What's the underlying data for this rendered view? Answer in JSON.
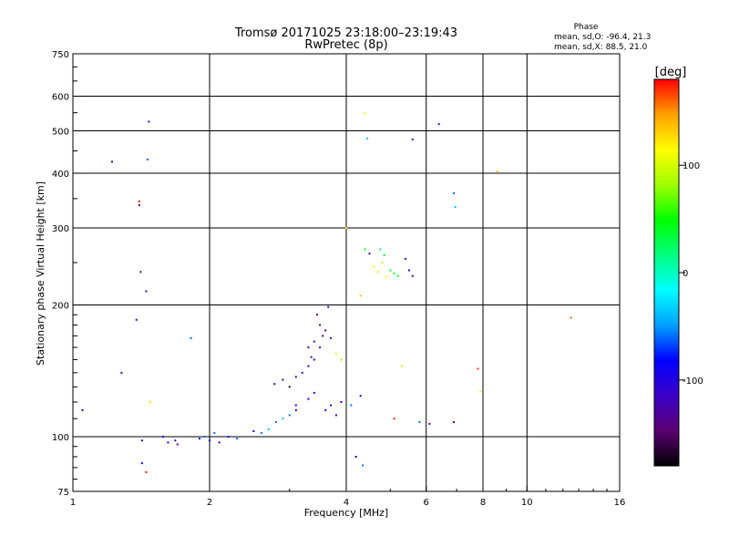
{
  "chart_data": {
    "type": "scatter",
    "title": "Tromsø 20171025 23:18:00–23:19:43",
    "subtitle": "RwPretec (8p)",
    "xlabel": "Frequency [MHz]",
    "ylabel": "Stationary phase Virtual Height [km]",
    "x_scale": "log",
    "y_scale": "log",
    "xlim": [
      1,
      16
    ],
    "ylim": [
      75,
      750
    ],
    "x_ticks": [
      1,
      2,
      4,
      6,
      8,
      10,
      16
    ],
    "y_ticks": [
      75,
      100,
      200,
      300,
      400,
      500,
      600,
      750
    ],
    "grid": true,
    "phase_legend": {
      "title": "Phase",
      "line1": "mean, sd,O: -96.4, 21.3",
      "line2": "mean, sd,X:  88.5, 21.0"
    },
    "colorbar": {
      "label": "[deg]",
      "range": [
        -180,
        180
      ],
      "ticks": [
        100,
        0,
        -100
      ],
      "colors": [
        "#000000",
        "#5a0070",
        "#3c00c8",
        "#0000ff",
        "#00a0ff",
        "#00ffff",
        "#00ff80",
        "#00ff00",
        "#a0ff00",
        "#ffff00",
        "#ffa000",
        "#ff0000"
      ]
    },
    "points": [
      [
        1.05,
        115,
        -120
      ],
      [
        1.22,
        425,
        -120
      ],
      [
        1.28,
        140,
        -120
      ],
      [
        1.38,
        185,
        -120
      ],
      [
        1.4,
        338,
        -130
      ],
      [
        1.4,
        345,
        175
      ],
      [
        1.41,
        238,
        -120
      ],
      [
        1.42,
        98,
        -100
      ],
      [
        1.42,
        87,
        -80
      ],
      [
        1.45,
        215,
        -120
      ],
      [
        1.45,
        83,
        175
      ],
      [
        1.46,
        430,
        -60
      ],
      [
        1.47,
        525,
        -120
      ],
      [
        1.48,
        120,
        120
      ],
      [
        1.58,
        100,
        -100
      ],
      [
        1.62,
        97,
        -100
      ],
      [
        1.68,
        98,
        -120
      ],
      [
        1.7,
        96,
        -120
      ],
      [
        1.82,
        168,
        -60
      ],
      [
        1.9,
        99,
        -100
      ],
      [
        1.95,
        100,
        -60
      ],
      [
        2.0,
        98,
        -80
      ],
      [
        2.05,
        102,
        -60
      ],
      [
        2.1,
        97,
        -100
      ],
      [
        2.2,
        100,
        -80
      ],
      [
        2.3,
        99,
        -60
      ],
      [
        2.5,
        103,
        -100
      ],
      [
        2.6,
        102,
        -60
      ],
      [
        2.7,
        104,
        -40
      ],
      [
        2.8,
        108,
        -60
      ],
      [
        2.9,
        110,
        -40
      ],
      [
        3.0,
        112,
        -60
      ],
      [
        3.1,
        115,
        -80
      ],
      [
        2.78,
        132,
        -120
      ],
      [
        2.9,
        135,
        -130
      ],
      [
        3.0,
        130,
        -160
      ],
      [
        3.1,
        137,
        -120
      ],
      [
        3.2,
        140,
        -110
      ],
      [
        3.3,
        145,
        -100
      ],
      [
        3.4,
        150,
        -120
      ],
      [
        3.5,
        160,
        -110
      ],
      [
        3.1,
        118,
        -100
      ],
      [
        3.3,
        122,
        -110
      ],
      [
        3.4,
        126,
        -100
      ],
      [
        3.6,
        115,
        -100
      ],
      [
        3.7,
        118,
        -110
      ],
      [
        3.8,
        112,
        -120
      ],
      [
        3.9,
        120,
        -100
      ],
      [
        3.55,
        170,
        -130
      ],
      [
        3.5,
        180,
        -120
      ],
      [
        3.45,
        190,
        -130
      ],
      [
        3.6,
        175,
        -110
      ],
      [
        3.7,
        168,
        -120
      ],
      [
        3.3,
        160,
        -120
      ],
      [
        3.35,
        152,
        -130
      ],
      [
        3.65,
        198,
        -140
      ],
      [
        3.4,
        165,
        -110
      ],
      [
        3.8,
        155,
        120
      ],
      [
        3.9,
        150,
        80
      ],
      [
        4.1,
        118,
        -60
      ],
      [
        4.3,
        124,
        -80
      ],
      [
        4.35,
        86,
        -60
      ],
      [
        4.2,
        90,
        -100
      ],
      [
        4.0,
        300,
        120
      ],
      [
        4.6,
        245,
        110
      ],
      [
        4.7,
        238,
        100
      ],
      [
        4.8,
        250,
        90
      ],
      [
        4.9,
        232,
        120
      ],
      [
        5.0,
        240,
        40
      ],
      [
        5.1,
        236,
        60
      ],
      [
        5.2,
        233,
        30
      ],
      [
        4.75,
        268,
        20
      ],
      [
        4.85,
        260,
        40
      ],
      [
        5.4,
        255,
        -120
      ],
      [
        5.5,
        240,
        -110
      ],
      [
        5.6,
        233,
        -130
      ],
      [
        4.3,
        210,
        140
      ],
      [
        4.5,
        262,
        -130
      ],
      [
        4.4,
        268,
        50
      ],
      [
        4.4,
        548,
        120
      ],
      [
        4.45,
        480,
        -40
      ],
      [
        5.6,
        478,
        -140
      ],
      [
        6.4,
        518,
        -130
      ],
      [
        6.9,
        360,
        -60
      ],
      [
        6.95,
        335,
        -40
      ],
      [
        8.6,
        404,
        140
      ],
      [
        12.5,
        187,
        160
      ],
      [
        7.8,
        143,
        170
      ],
      [
        7.9,
        127,
        110
      ],
      [
        5.3,
        145,
        130
      ],
      [
        5.1,
        110,
        175
      ],
      [
        5.8,
        108,
        -60
      ],
      [
        6.1,
        107,
        -140
      ],
      [
        6.9,
        108,
        -130
      ]
    ]
  }
}
